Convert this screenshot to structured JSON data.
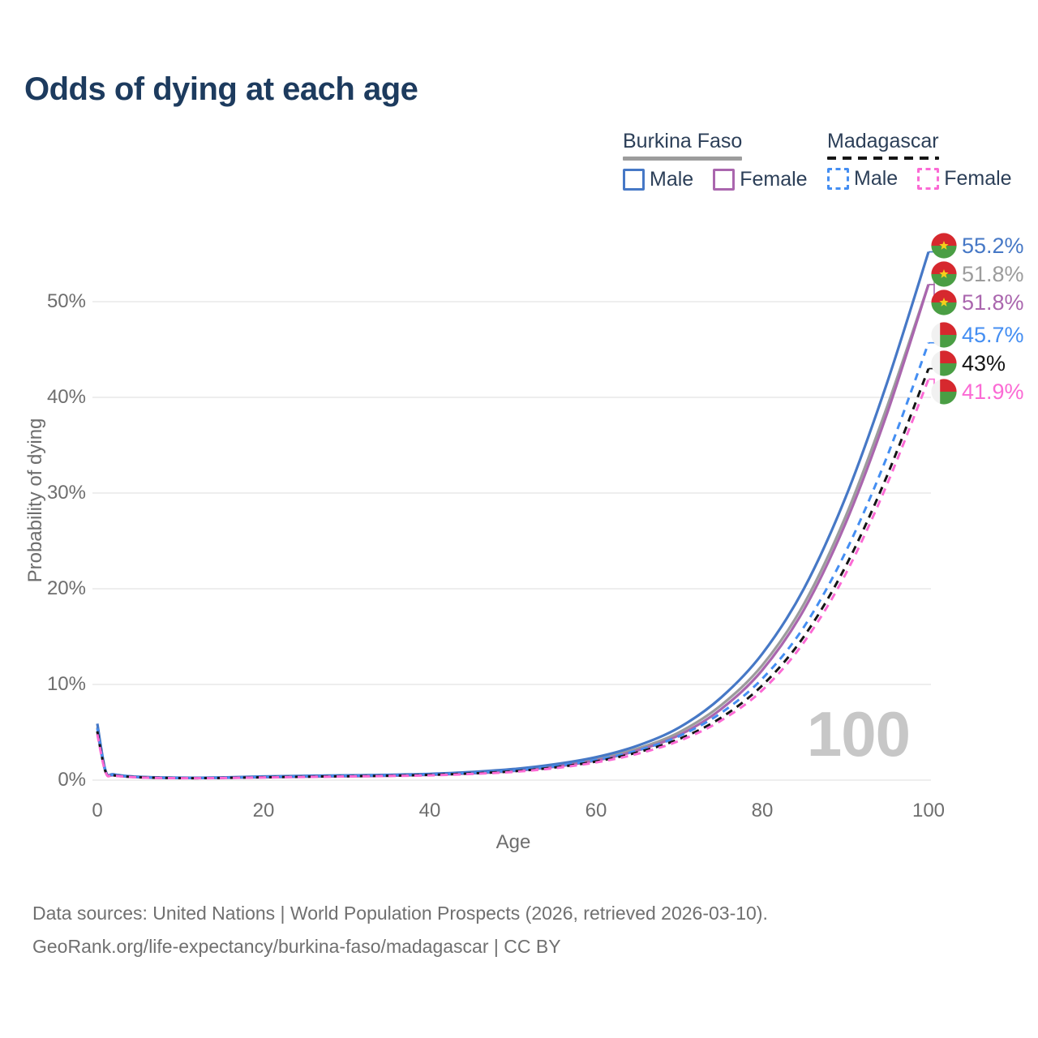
{
  "header": {
    "title": "Odds of dying at each age"
  },
  "legend": {
    "groups": [
      {
        "country": "Burkina Faso",
        "line_color": "#9c9c9c",
        "line_style": "solid",
        "items": [
          {
            "label": "Male",
            "color": "#4678c6",
            "style": "solid"
          },
          {
            "label": "Female",
            "color": "#aa66ae",
            "style": "solid"
          }
        ]
      },
      {
        "country": "Madagascar",
        "line_color": "#151515",
        "line_style": "dashed",
        "items": [
          {
            "label": "Male",
            "color": "#448ef2",
            "style": "dashed"
          },
          {
            "label": "Female",
            "color": "#fb6ad4",
            "style": "dashed"
          }
        ]
      }
    ]
  },
  "chart_data": {
    "type": "line",
    "title": "Odds of dying at each age",
    "xlabel": "Age",
    "ylabel": "Probability of dying",
    "x_ticks": [
      "0",
      "20",
      "40",
      "60",
      "80",
      "100"
    ],
    "y_ticks": [
      "0%",
      "10%",
      "20%",
      "30%",
      "40%",
      "50%"
    ],
    "xlim": [
      0,
      100
    ],
    "ylim_percent": [
      0,
      57
    ],
    "grid": "horizontal",
    "legend_position": "top-right",
    "watermark": "100",
    "ages": [
      0,
      1,
      2,
      5,
      10,
      15,
      20,
      25,
      30,
      35,
      40,
      45,
      50,
      55,
      60,
      65,
      70,
      75,
      80,
      85,
      90,
      95,
      100
    ],
    "series": [
      {
        "name": "Burkina Faso Male",
        "country": "Burkina Faso",
        "sex": "Male",
        "flag": "burkina-faso",
        "color": "#4678c6",
        "dash": false,
        "end_label": "55.2%",
        "values": [
          5.9,
          0.95,
          0.6,
          0.35,
          0.25,
          0.28,
          0.38,
          0.45,
          0.5,
          0.55,
          0.65,
          0.85,
          1.15,
          1.65,
          2.4,
          3.6,
          5.5,
          8.6,
          13.2,
          20.0,
          29.5,
          41.5,
          55.2
        ]
      },
      {
        "name": "Burkina Faso Both sexes",
        "country": "Burkina Faso",
        "sex": "Both",
        "flag": "burkina-faso",
        "color": "#9c9c9c",
        "dash": false,
        "end_label": "51.8%",
        "values": [
          5.5,
          0.9,
          0.55,
          0.33,
          0.23,
          0.26,
          0.34,
          0.4,
          0.45,
          0.5,
          0.6,
          0.78,
          1.05,
          1.5,
          2.2,
          3.3,
          5.0,
          7.8,
          12.0,
          18.4,
          27.5,
          39.0,
          51.8
        ]
      },
      {
        "name": "Burkina Faso Female",
        "country": "Burkina Faso",
        "sex": "Female",
        "flag": "burkina-faso",
        "color": "#aa66ae",
        "dash": false,
        "end_label": "51.8%",
        "values": [
          5.1,
          0.85,
          0.5,
          0.3,
          0.22,
          0.24,
          0.3,
          0.36,
          0.4,
          0.45,
          0.55,
          0.7,
          0.95,
          1.4,
          2.05,
          3.1,
          4.7,
          7.4,
          11.5,
          17.8,
          26.8,
          38.3,
          51.8
        ]
      },
      {
        "name": "Madagascar Male",
        "country": "Madagascar",
        "sex": "Male",
        "flag": "madagascar",
        "color": "#448ef2",
        "dash": true,
        "end_label": "45.7%",
        "values": [
          5.4,
          0.9,
          0.55,
          0.32,
          0.22,
          0.25,
          0.33,
          0.4,
          0.45,
          0.5,
          0.6,
          0.75,
          1.0,
          1.45,
          2.1,
          3.1,
          4.6,
          7.0,
          10.6,
          16.0,
          23.8,
          33.8,
          45.7
        ]
      },
      {
        "name": "Madagascar Both sexes",
        "country": "Madagascar",
        "sex": "Both",
        "flag": "madagascar",
        "color": "#151515",
        "dash": true,
        "end_label": "43%",
        "values": [
          5.1,
          0.85,
          0.5,
          0.3,
          0.21,
          0.23,
          0.3,
          0.36,
          0.41,
          0.46,
          0.55,
          0.7,
          0.92,
          1.32,
          1.95,
          2.9,
          4.3,
          6.5,
          9.9,
          15.0,
          22.3,
          31.8,
          43.0
        ]
      },
      {
        "name": "Madagascar Female",
        "country": "Madagascar",
        "sex": "Female",
        "flag": "madagascar",
        "color": "#fb6ad4",
        "dash": true,
        "end_label": "41.9%",
        "values": [
          4.8,
          0.8,
          0.48,
          0.28,
          0.2,
          0.22,
          0.28,
          0.33,
          0.38,
          0.43,
          0.5,
          0.64,
          0.86,
          1.25,
          1.85,
          2.75,
          4.1,
          6.2,
          9.4,
          14.4,
          21.5,
          30.9,
          41.9
        ]
      }
    ],
    "flag_colors": {
      "burkina-faso": {
        "red": "#d6282e",
        "green": "#4a9e44",
        "star": "#f5cf1b"
      },
      "madagascar": {
        "white": "#f1f1f1",
        "red": "#d6282e",
        "green": "#4a9e44"
      }
    }
  },
  "footer": {
    "line1": "Data sources: United Nations | World Population Prospects (2026, retrieved 2026-03-10).",
    "line2": "GeoRank.org/life-expectancy/burkina-faso/madagascar | CC BY"
  }
}
